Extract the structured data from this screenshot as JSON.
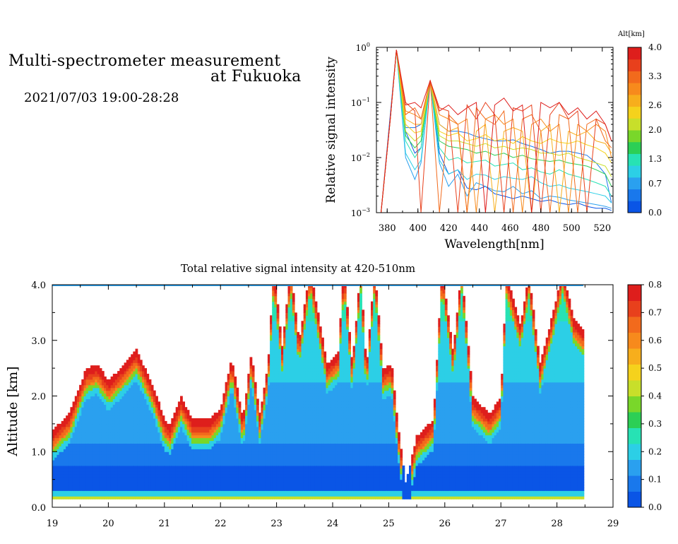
{
  "header": {
    "title_line1": "Multi-spectrometer measurement",
    "title_line2": "at Fukuoka",
    "datetime": "2021/07/03 19:00-28:28"
  },
  "colormap": [
    "#0a55e6",
    "#1978ec",
    "#2aa0ef",
    "#2ccfe6",
    "#27e2b4",
    "#2ccf55",
    "#79d72a",
    "#c8df2a",
    "#f5d21c",
    "#f7ae1c",
    "#f78a1c",
    "#f26a1c",
    "#e8401c",
    "#de1e1c"
  ],
  "chart_data": [
    {
      "id": "spectra",
      "type": "line",
      "xlabel": "Wavelength[nm]",
      "ylabel": "Relative signal intensity",
      "xlim": [
        373,
        527
      ],
      "ylim": [
        0.001,
        1
      ],
      "y_scale": "log",
      "x_ticks": [
        "380",
        "400",
        "420",
        "440",
        "460",
        "480",
        "500",
        "520"
      ],
      "y_ticks": [
        "10",
        "10",
        "10",
        "10"
      ],
      "y_tick_exponents": [
        "0",
        "−1",
        "−2",
        "−3"
      ],
      "colorbar": {
        "label": "Alt[km]",
        "range": [
          0,
          4
        ],
        "ticks": [
          "4.0",
          "3.3",
          "2.6",
          "2.0",
          "1.3",
          "0.7",
          "0.0"
        ]
      },
      "x": [
        376,
        382,
        386,
        392,
        398,
        402,
        408,
        414,
        420,
        426,
        432,
        438,
        444,
        450,
        456,
        462,
        468,
        474,
        480,
        486,
        492,
        498,
        504,
        510,
        516,
        522,
        526
      ],
      "series": [
        {
          "alt": 0.1,
          "values": [
            0.001,
            0.06,
            0.9,
            0.03,
            0.012,
            0.015,
            0.25,
            0.012,
            0.005,
            0.006,
            0.0028,
            0.0026,
            0.003,
            0.0022,
            0.002,
            0.0018,
            0.002,
            0.0018,
            0.0016,
            0.0017,
            0.0015,
            0.0014,
            0.0015,
            0.0013,
            0.0012,
            0.0012,
            0.0011
          ]
        },
        {
          "alt": 0.3,
          "values": [
            0.001,
            0.05,
            0.9,
            0.035,
            0.035,
            0.04,
            0.25,
            0.04,
            0.03,
            0.03,
            0.028,
            0.024,
            0.022,
            0.02,
            0.02,
            0.021,
            0.018,
            0.016,
            0.014,
            0.012,
            0.013,
            0.013,
            0.012,
            0.011,
            0.008,
            0.005,
            0.0015
          ]
        },
        {
          "alt": 0.6,
          "values": [
            0.001,
            0.05,
            0.9,
            0.01,
            0.004,
            0.008,
            0.25,
            0.008,
            0.003,
            0.005,
            0.002,
            0.0035,
            0.003,
            0.0025,
            0.0024,
            0.003,
            0.0022,
            0.0025,
            0.0018,
            0.002,
            0.0019,
            0.0017,
            0.0016,
            0.0015,
            0.0014,
            0.0013,
            0.0012
          ]
        },
        {
          "alt": 1.0,
          "values": [
            0.001,
            0.05,
            0.9,
            0.012,
            0.006,
            0.009,
            0.25,
            0.009,
            0.005,
            0.006,
            0.004,
            0.005,
            0.0048,
            0.004,
            0.0045,
            0.0042,
            0.004,
            0.0045,
            0.0035,
            0.003,
            0.0032,
            0.0028,
            0.0026,
            0.0024,
            0.0022,
            0.002,
            0.0015
          ]
        },
        {
          "alt": 1.3,
          "values": [
            0.001,
            0.05,
            0.9,
            0.02,
            0.01,
            0.015,
            0.25,
            0.015,
            0.009,
            0.01,
            0.008,
            0.0085,
            0.009,
            0.007,
            0.0075,
            0.008,
            0.006,
            0.0065,
            0.0055,
            0.005,
            0.006,
            0.005,
            0.0045,
            0.004,
            0.0035,
            0.003,
            0.002
          ]
        },
        {
          "alt": 1.6,
          "values": [
            0.001,
            0.05,
            0.9,
            0.025,
            0.015,
            0.02,
            0.25,
            0.02,
            0.016,
            0.015,
            0.014,
            0.012,
            0.013,
            0.011,
            0.012,
            0.01,
            0.011,
            0.0095,
            0.009,
            0.0085,
            0.009,
            0.008,
            0.0075,
            0.007,
            0.006,
            0.005,
            0.003
          ]
        },
        {
          "alt": 2.0,
          "values": [
            0.001,
            0.05,
            0.9,
            0.03,
            0.02,
            0.025,
            0.25,
            0.025,
            0.02,
            0.02,
            0.018,
            0.016,
            0.018,
            0.015,
            0.016,
            0.014,
            0.015,
            0.014,
            0.012,
            0.012,
            0.011,
            0.012,
            0.01,
            0.009,
            0.008,
            0.007,
            0.0045
          ]
        },
        {
          "alt": 2.4,
          "values": [
            0.001,
            0.05,
            0.9,
            0.04,
            0.028,
            0.03,
            0.25,
            0.03,
            0.025,
            0.028,
            0.02,
            0.022,
            0.026,
            0.02,
            0.022,
            0.018,
            0.024,
            0.02,
            0.018,
            0.022,
            0.019,
            0.018,
            0.02,
            0.017,
            0.015,
            0.012,
            0.008
          ]
        },
        {
          "alt": 2.7,
          "values": [
            0.001,
            0.05,
            0.9,
            0.05,
            0.04,
            0.04,
            0.25,
            0.04,
            0.03,
            0.035,
            0.001,
            0.03,
            0.04,
            0.001,
            0.03,
            0.035,
            0.03,
            0.001,
            0.03,
            0.04,
            0.001,
            0.03,
            0.025,
            0.03,
            0.02,
            0.018,
            0.012
          ]
        },
        {
          "alt": 3.0,
          "values": [
            0.001,
            0.05,
            0.9,
            0.07,
            0.06,
            0.05,
            0.25,
            0.06,
            0.05,
            0.04,
            0.05,
            0.001,
            0.05,
            0.06,
            0.04,
            0.05,
            0.001,
            0.04,
            0.05,
            0.03,
            0.04,
            0.001,
            0.04,
            0.03,
            0.04,
            0.03,
            0.01
          ]
        },
        {
          "alt": 3.4,
          "values": [
            0.001,
            0.05,
            0.9,
            0.06,
            0.08,
            0.05,
            0.25,
            0.001,
            0.06,
            0.04,
            0.001,
            0.08,
            0.05,
            0.04,
            0.07,
            0.001,
            0.05,
            0.06,
            0.03,
            0.001,
            0.06,
            0.05,
            0.001,
            0.04,
            0.05,
            0.02,
            0.015
          ]
        },
        {
          "alt": 3.7,
          "values": [
            0.001,
            0.05,
            0.9,
            0.1,
            0.07,
            0.001,
            0.25,
            0.08,
            0.07,
            0.001,
            0.09,
            0.05,
            0.1,
            0.06,
            0.001,
            0.08,
            0.07,
            0.09,
            0.001,
            0.06,
            0.1,
            0.05,
            0.07,
            0.001,
            0.05,
            0.04,
            0.02
          ]
        },
        {
          "alt": 3.9,
          "values": [
            0.001,
            0.05,
            0.9,
            0.09,
            0.1,
            0.08,
            0.25,
            0.07,
            0.09,
            0.06,
            0.08,
            0.1,
            0.001,
            0.09,
            0.12,
            0.07,
            0.09,
            0.001,
            0.1,
            0.08,
            0.1,
            0.06,
            0.08,
            0.05,
            0.07,
            0.04,
            0.02
          ]
        }
      ]
    },
    {
      "id": "time-height",
      "type": "heatmap",
      "title": "Total relative signal intensity at 420-510nm",
      "xlabel": "",
      "ylabel": "Altitude [km]",
      "xlim": [
        19,
        29
      ],
      "ylim": [
        0,
        4
      ],
      "data_x_end": 28.47,
      "x_ticks": [
        "19",
        "20",
        "21",
        "22",
        "23",
        "24",
        "25",
        "26",
        "27",
        "28",
        "29"
      ],
      "y_ticks": [
        "0.0",
        "1.0",
        "2.0",
        "3.0",
        "4.0"
      ],
      "colorbar": {
        "range": [
          0,
          0.8
        ],
        "ticks": [
          "0.0",
          "0.1",
          "0.2",
          "0.3",
          "0.4",
          "0.5",
          "0.6",
          "0.7",
          "0.8"
        ]
      },
      "cloud_base_profile": [
        [
          19.0,
          1.1
        ],
        [
          19.3,
          1.4
        ],
        [
          19.6,
          2.2
        ],
        [
          19.8,
          2.3
        ],
        [
          20.0,
          2.0
        ],
        [
          20.2,
          2.2
        ],
        [
          20.5,
          2.55
        ],
        [
          20.8,
          1.9
        ],
        [
          21.0,
          1.3
        ],
        [
          21.1,
          1.2
        ],
        [
          21.3,
          1.7
        ],
        [
          21.5,
          1.3
        ],
        [
          21.8,
          1.3
        ],
        [
          22.0,
          1.5
        ],
        [
          22.2,
          2.4
        ],
        [
          22.4,
          1.3
        ],
        [
          22.55,
          2.5
        ],
        [
          22.7,
          1.4
        ],
        [
          22.85,
          2.3
        ],
        [
          22.95,
          4.0
        ],
        [
          23.1,
          2.6
        ],
        [
          23.25,
          4.0
        ],
        [
          23.4,
          2.7
        ],
        [
          23.6,
          4.0
        ],
        [
          23.9,
          2.3
        ],
        [
          24.1,
          2.5
        ],
        [
          24.2,
          4.0
        ],
        [
          24.35,
          2.3
        ],
        [
          24.5,
          4.0
        ],
        [
          24.6,
          2.2
        ],
        [
          24.75,
          4.0
        ],
        [
          24.9,
          2.2
        ],
        [
          25.05,
          2.3
        ],
        [
          25.15,
          1.3
        ],
        [
          25.3,
          0.15
        ],
        [
          25.5,
          1.0
        ],
        [
          25.8,
          1.3
        ],
        [
          25.95,
          4.0
        ],
        [
          26.15,
          2.5
        ],
        [
          26.3,
          4.0
        ],
        [
          26.5,
          1.7
        ],
        [
          26.8,
          1.4
        ],
        [
          27.0,
          1.7
        ],
        [
          27.1,
          3.9
        ],
        [
          27.35,
          3.0
        ],
        [
          27.5,
          3.9
        ],
        [
          27.7,
          2.3
        ],
        [
          27.95,
          3.3
        ],
        [
          28.1,
          4.0
        ],
        [
          28.3,
          3.1
        ],
        [
          28.47,
          2.9
        ]
      ]
    }
  ]
}
